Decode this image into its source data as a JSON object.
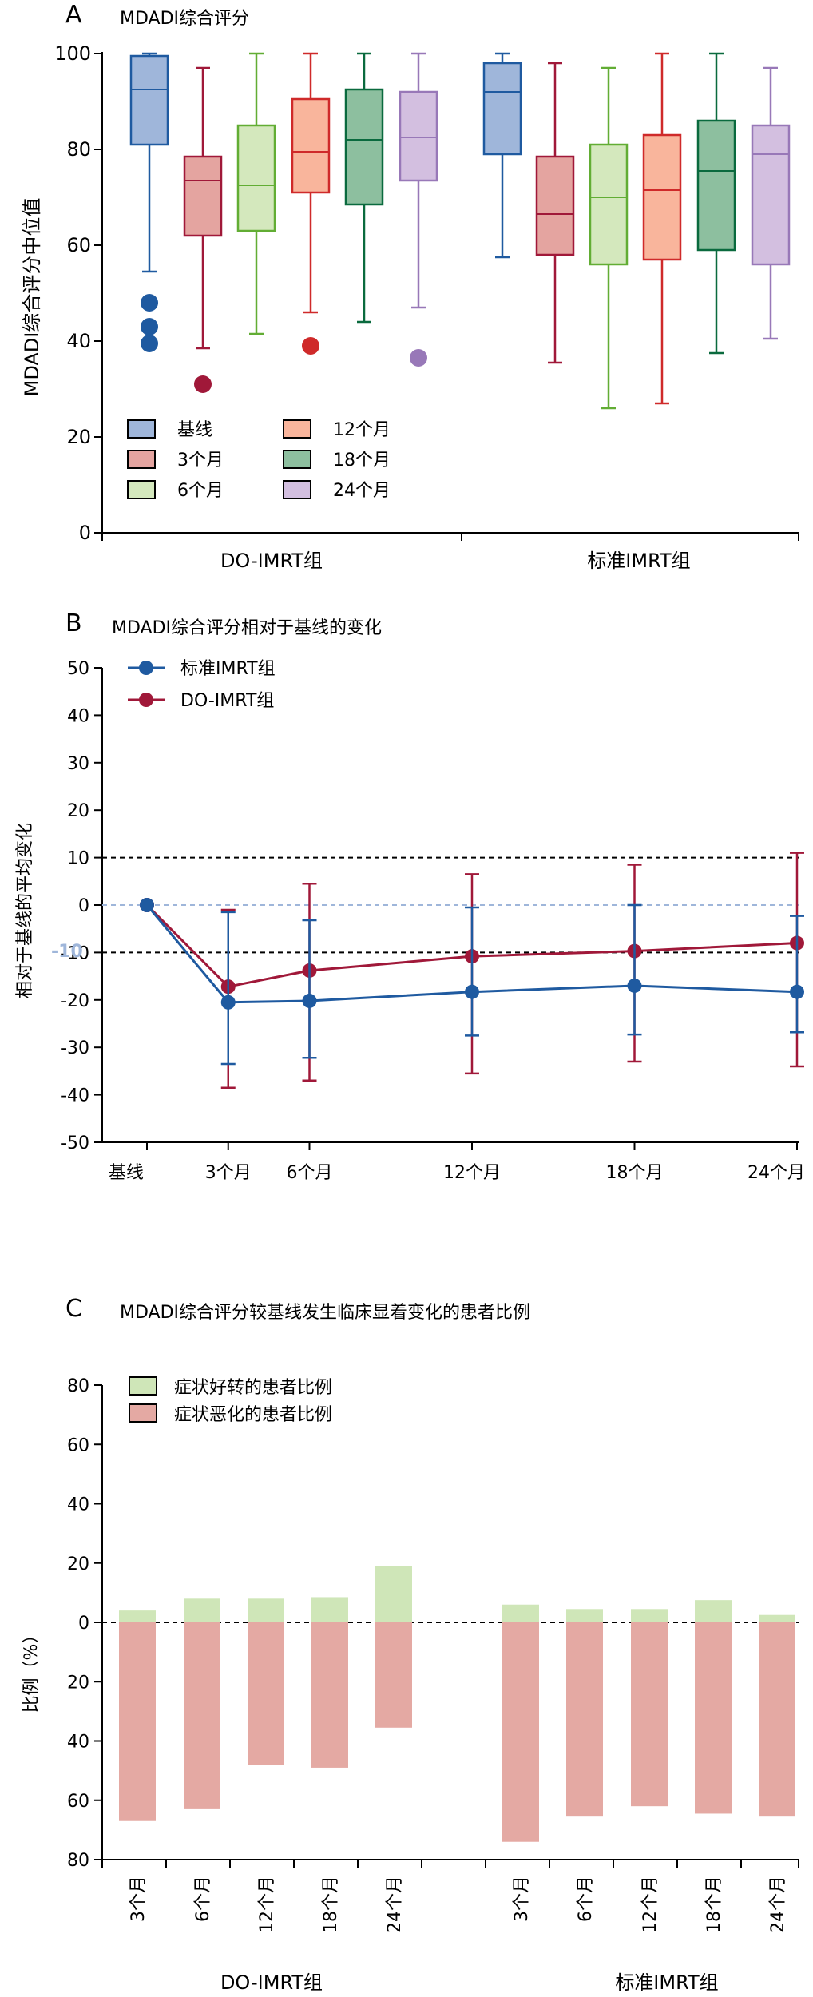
{
  "panelA": {
    "letter": "A",
    "title": "MDADI综合评分",
    "chart_data": {
      "type": "box",
      "ylabel": "MDADI综合评分中位值",
      "ylim": [
        0,
        100
      ],
      "yticks": [
        0,
        20,
        40,
        60,
        80,
        100
      ],
      "groups": [
        "DO-IMRT组",
        "标准IMRT组"
      ],
      "legend": [
        "基线",
        "3个月",
        "6个月",
        "12个月",
        "18个月",
        "24个月"
      ],
      "colors": {
        "fill": [
          "#9fb6da",
          "#e4a4a0",
          "#d4e8bd",
          "#f9b59c",
          "#8dbf9f",
          "#d3bfe0"
        ],
        "stroke": [
          "#1f5aa0",
          "#a01839",
          "#62ad34",
          "#cf2a2a",
          "#0a6a3e",
          "#9878b8"
        ]
      },
      "series": [
        {
          "group": "DO-IMRT组",
          "name": "基线",
          "min": 54.5,
          "q1": 81,
          "median": 92.5,
          "q3": 99.5,
          "max": 100,
          "outliers": [
            48,
            43,
            39.5
          ]
        },
        {
          "group": "DO-IMRT组",
          "name": "3个月",
          "min": 38.5,
          "q1": 62,
          "median": 73.5,
          "q3": 78.5,
          "max": 97,
          "outliers": [
            31
          ]
        },
        {
          "group": "DO-IMRT组",
          "name": "6个月",
          "min": 41.5,
          "q1": 63,
          "median": 72.5,
          "q3": 85,
          "max": 100,
          "outliers": []
        },
        {
          "group": "DO-IMRT组",
          "name": "12个月",
          "min": 46,
          "q1": 71,
          "median": 79.5,
          "q3": 90.5,
          "max": 100,
          "outliers": [
            39
          ]
        },
        {
          "group": "DO-IMRT组",
          "name": "18个月",
          "min": 44,
          "q1": 68.5,
          "median": 82,
          "q3": 92.5,
          "max": 100,
          "outliers": []
        },
        {
          "group": "DO-IMRT组",
          "name": "24个月",
          "min": 47,
          "q1": 73.5,
          "median": 82.5,
          "q3": 92,
          "max": 100,
          "outliers": [
            36.5
          ]
        },
        {
          "group": "标准IMRT组",
          "name": "基线",
          "min": 57.5,
          "q1": 79,
          "median": 92,
          "q3": 98,
          "max": 100,
          "outliers": []
        },
        {
          "group": "标准IMRT组",
          "name": "3个月",
          "min": 35.5,
          "q1": 58,
          "median": 66.5,
          "q3": 78.5,
          "max": 98,
          "outliers": []
        },
        {
          "group": "标准IMRT组",
          "name": "6个月",
          "min": 26,
          "q1": 56,
          "median": 70,
          "q3": 81,
          "max": 97,
          "outliers": []
        },
        {
          "group": "标准IMRT组",
          "name": "12个月",
          "min": 27,
          "q1": 57,
          "median": 71.5,
          "q3": 83,
          "max": 100,
          "outliers": []
        },
        {
          "group": "标准IMRT组",
          "name": "18个月",
          "min": 37.5,
          "q1": 59,
          "median": 75.5,
          "q3": 86,
          "max": 100,
          "outliers": []
        },
        {
          "group": "标准IMRT组",
          "name": "24个月",
          "min": 40.5,
          "q1": 56,
          "median": 79,
          "q3": 85,
          "max": 97,
          "outliers": []
        }
      ]
    }
  },
  "panelB": {
    "letter": "B",
    "title": "MDADI综合评分相对于基线的变化",
    "chart_data": {
      "type": "line",
      "ylabel": "相对于基线的平均变化",
      "ylim": [
        -50,
        50
      ],
      "yticks": [
        -50,
        -40,
        -30,
        -20,
        -10,
        0,
        10,
        20,
        30,
        40,
        50
      ],
      "categories": [
        "基线",
        "3个月",
        "6个月",
        "12个月",
        "18个月",
        "24个月"
      ],
      "x_months": [
        0,
        3,
        6,
        12,
        18,
        24
      ],
      "reference_lines": [
        10,
        0,
        -10
      ],
      "series": [
        {
          "name": "标准IMRT组",
          "color": "#1f5aa0",
          "values": [
            0,
            -20.5,
            -20.2,
            -18.3,
            -17,
            -18.3
          ],
          "err_low": [
            0,
            -33.5,
            -32.2,
            -27.5,
            -27.3,
            -26.8
          ],
          "err_high": [
            0,
            -1.5,
            -3.2,
            -0.5,
            0,
            -2.3
          ]
        },
        {
          "name": "DO-IMRT组",
          "color": "#a01839",
          "values": [
            0,
            -17.2,
            -13.8,
            -10.8,
            -9.7,
            -8
          ],
          "err_low": [
            0,
            -38.5,
            -37,
            -35.5,
            -33,
            -34
          ],
          "err_high": [
            0,
            -1,
            4.5,
            6.5,
            8.5,
            11
          ]
        }
      ],
      "annotation": "-10"
    }
  },
  "panelC": {
    "letter": "C",
    "title": "MDADI综合评分较基线发生临床显着变化的患者比例",
    "chart_data": {
      "type": "bar",
      "ylabel": "比例（%）",
      "ylim": [
        -80,
        80
      ],
      "ytick_labels": [
        "80",
        "60",
        "40",
        "20",
        "0",
        "20",
        "40",
        "60",
        "80"
      ],
      "groups": [
        "DO-IMRT组",
        "标准IMRT组"
      ],
      "categories": [
        "3个月",
        "6个月",
        "12个月",
        "18个月",
        "24个月"
      ],
      "colors": {
        "improve": "#cfe6b8",
        "worsen": "#e4a9a3"
      },
      "series": [
        {
          "name": "症状好转的患者比例",
          "group": "DO-IMRT组",
          "values": [
            4,
            8,
            8,
            8.5,
            19
          ]
        },
        {
          "name": "症状恶化的患者比例",
          "group": "DO-IMRT组",
          "values": [
            67,
            63,
            48,
            49,
            35.5
          ]
        },
        {
          "name": "症状好转的患者比例",
          "group": "标准IMRT组",
          "values": [
            6,
            4.5,
            4.5,
            7.5,
            2.5
          ]
        },
        {
          "name": "症状恶化的患者比例",
          "group": "标准IMRT组",
          "values": [
            74,
            65.5,
            62,
            64.5,
            65.5
          ]
        }
      ]
    }
  }
}
